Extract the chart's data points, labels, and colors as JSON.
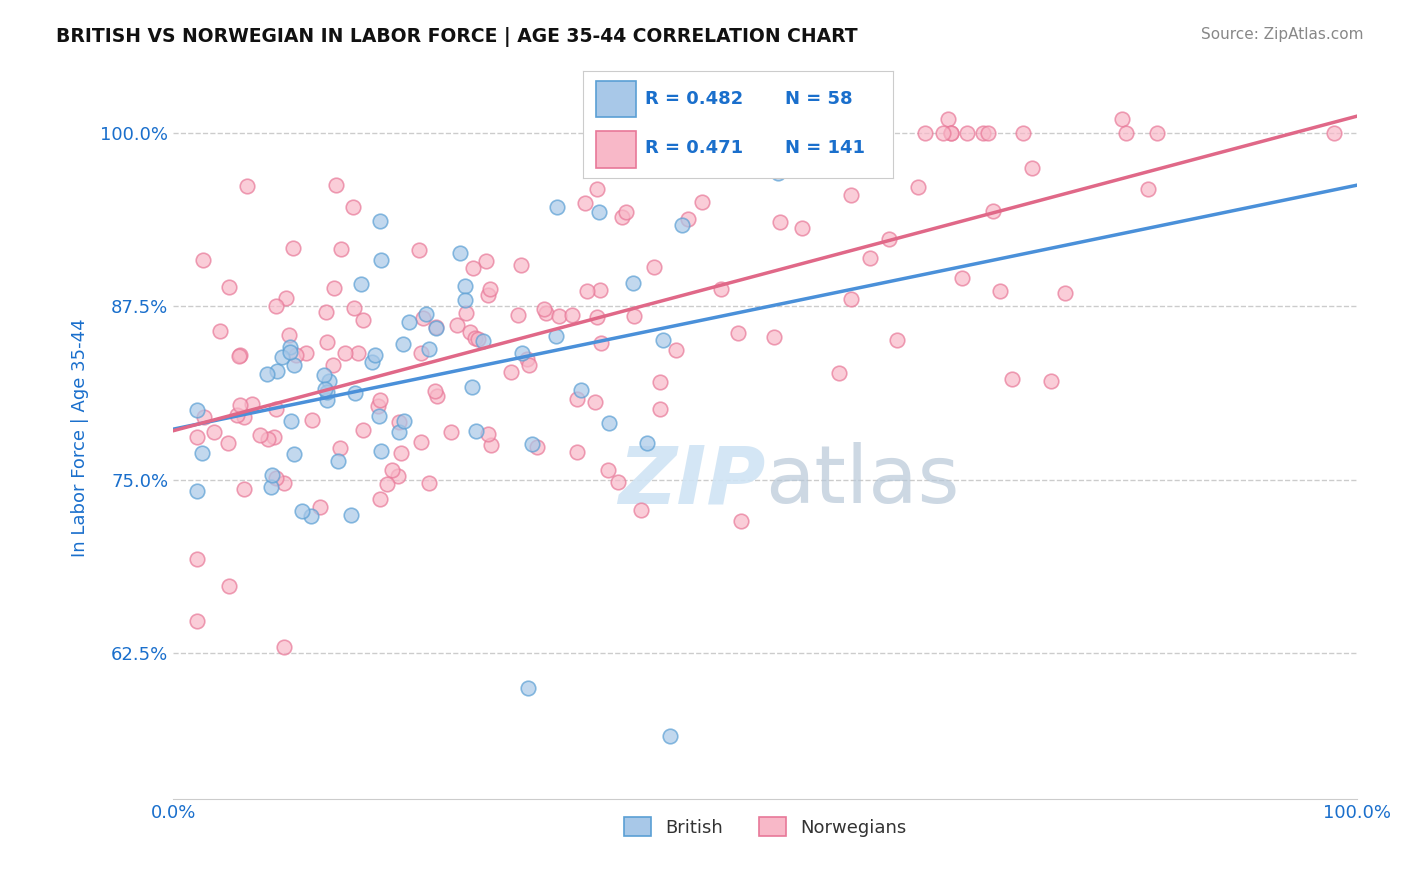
{
  "title": "BRITISH VS NORWEGIAN IN LABOR FORCE | AGE 35-44 CORRELATION CHART",
  "source_text": "Source: ZipAtlas.com",
  "ylabel": "In Labor Force | Age 35-44",
  "xlim": [
    0.0,
    1.0
  ],
  "ylim": [
    0.52,
    1.04
  ],
  "yticks": [
    0.625,
    0.75,
    0.875,
    1.0
  ],
  "ytick_labels": [
    "62.5%",
    "75.0%",
    "87.5%",
    "100.0%"
  ],
  "xticks": [
    0.0,
    1.0
  ],
  "xtick_labels": [
    "0.0%",
    "100.0%"
  ],
  "british_R": 0.482,
  "british_N": 58,
  "norwegian_R": 0.471,
  "norwegian_N": 141,
  "british_face_color": "#a8c8e8",
  "british_edge_color": "#5a9fd4",
  "norwegian_face_color": "#f8b8c8",
  "norwegian_edge_color": "#e87898",
  "trendline_british_color": "#4a90d9",
  "trendline_norwegian_color": "#e06888",
  "background_color": "#ffffff",
  "grid_color": "#cccccc",
  "title_color": "#111111",
  "axis_label_color": "#1a6fcc",
  "watermark_color": "#d0e4f4",
  "legend_color": "#1a6fcc"
}
